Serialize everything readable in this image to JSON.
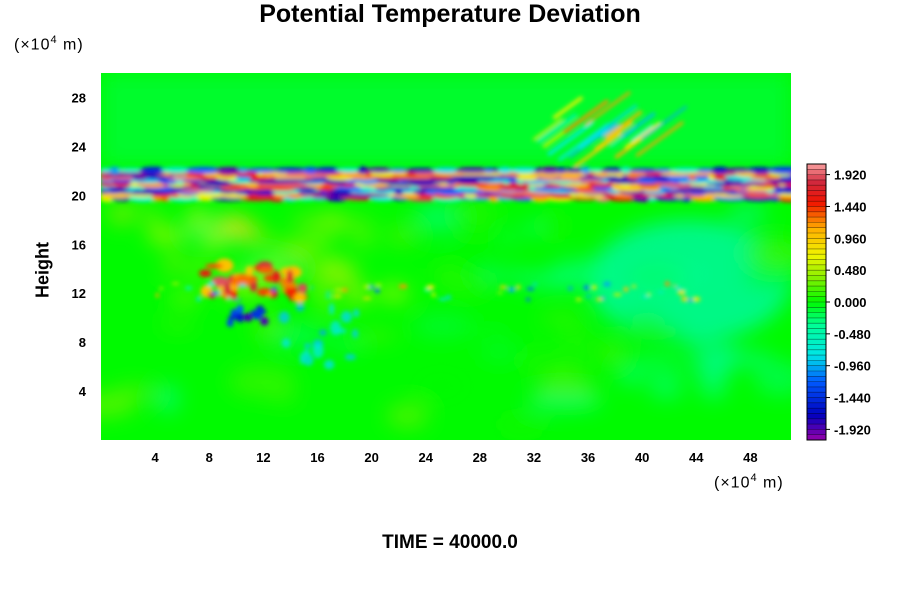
{
  "chart_data": {
    "type": "heatmap",
    "title": "Potential Temperature Deviation",
    "xlabel": "",
    "ylabel": "Height",
    "x_unit_prefix": "(×10",
    "x_unit_exp": "4",
    "x_unit_suffix": " m)",
    "y_unit_prefix": "(×10",
    "y_unit_exp": "4",
    "y_unit_suffix": " m)",
    "xlim": [
      0,
      51
    ],
    "ylim": [
      0,
      30
    ],
    "x_ticks": [
      4,
      8,
      12,
      16,
      20,
      24,
      28,
      32,
      36,
      40,
      44,
      48
    ],
    "y_ticks": [
      4,
      8,
      12,
      16,
      20,
      24,
      28
    ],
    "colorbar": {
      "min": -2.08,
      "max": 2.08,
      "ticks": [
        1.92,
        1.44,
        0.96,
        0.48,
        0.0,
        -0.48,
        -0.96,
        -1.44,
        -1.92
      ],
      "tick_labels": [
        "1.920",
        "1.440",
        "0.960",
        "0.480",
        "0.000",
        "-0.480",
        "-0.960",
        "-1.440",
        "-1.920"
      ]
    },
    "features": [
      {
        "kind": "band",
        "x": [
          0,
          51
        ],
        "y": [
          19.6,
          22.2
        ],
        "value_range": [
          -1.92,
          1.92
        ]
      },
      {
        "kind": "blob",
        "x": [
          7.5,
          15
        ],
        "y": [
          11.6,
          14.6
        ],
        "value": 1.6
      },
      {
        "kind": "blob",
        "x": [
          9.5,
          12.5
        ],
        "y": [
          9.5,
          10.8
        ],
        "value": -1.6
      },
      {
        "kind": "blob",
        "x": [
          36,
          51
        ],
        "y": [
          8,
          18
        ],
        "value": -0.5
      },
      {
        "kind": "wave",
        "x": [
          32,
          40
        ],
        "y": [
          22,
          27
        ],
        "value_range": [
          -1.0,
          1.2
        ]
      }
    ]
  },
  "footer": {
    "time_label": "TIME = 40000.0"
  }
}
